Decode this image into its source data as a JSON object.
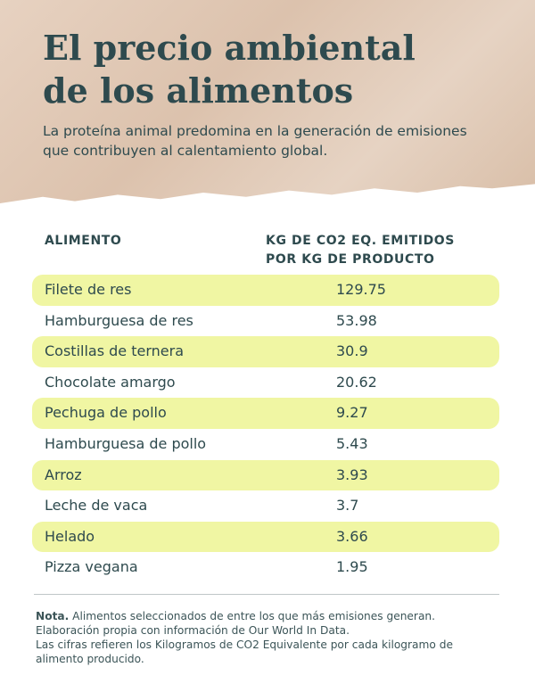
{
  "header": {
    "title_line1": "El precio ambiental",
    "title_line2": "de los alimentos",
    "subtitle": "La proteína animal predomina en la generación de emisiones que contribuyen al calentamiento global."
  },
  "table": {
    "col_food": "ALIMENTO",
    "col_value_line1": "KG DE CO2 EQ. EMITIDOS",
    "col_value_line2": "POR KG DE PRODUCTO",
    "rows": [
      {
        "name": "Filete de res",
        "value": "129.75"
      },
      {
        "name": "Hamburguesa de res",
        "value": "53.98"
      },
      {
        "name": "Costillas de ternera",
        "value": "30.9"
      },
      {
        "name": "Chocolate amargo",
        "value": "20.62"
      },
      {
        "name": "Pechuga de pollo",
        "value": "9.27"
      },
      {
        "name": "Hamburguesa de pollo",
        "value": "5.43"
      },
      {
        "name": "Arroz",
        "value": "3.93"
      },
      {
        "name": "Leche de vaca",
        "value": "3.7"
      },
      {
        "name": "Helado",
        "value": "3.66"
      },
      {
        "name": "Pizza vegana",
        "value": "1.95"
      }
    ]
  },
  "note": {
    "label": "Nota.",
    "line1": " Alimentos seleccionados de entre los que más emisiones generan.",
    "line2": "Elaboración propia con información de Our World In Data.",
    "line3": "Las cifras refieren los Kilogramos de CO2 Equivalente por cada kilogramo de alimento producido."
  },
  "colors": {
    "text": "#2e4a4e",
    "highlight": "#f0f6a3",
    "header_bg": "#e0c8b5"
  }
}
